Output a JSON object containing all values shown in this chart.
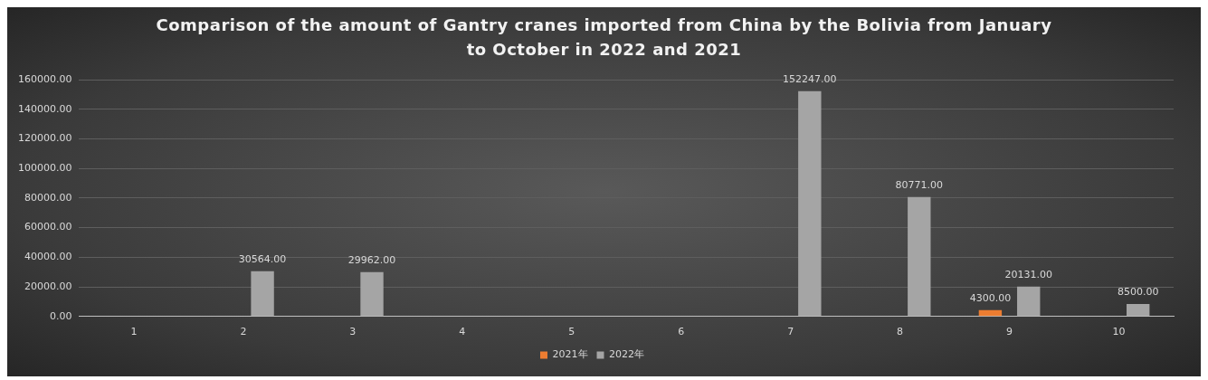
{
  "chart_data": {
    "type": "bar",
    "title": "Comparison of the amount of Gantry cranes imported from China by the Bolivia from January to October in 2022 and 2021",
    "categories": [
      "1",
      "2",
      "3",
      "4",
      "5",
      "6",
      "7",
      "8",
      "9",
      "10"
    ],
    "series": [
      {
        "name": "2021年",
        "color": "#ed7d31",
        "values": [
          0,
          0,
          0,
          0,
          0,
          0,
          0,
          0,
          4300,
          0
        ],
        "value_labels": [
          null,
          null,
          null,
          null,
          null,
          null,
          null,
          null,
          "4300.00",
          null
        ]
      },
      {
        "name": "2022年",
        "color": "#a5a5a5",
        "values": [
          0,
          30564,
          29962,
          0,
          0,
          0,
          152247,
          80771,
          20131,
          8500
        ],
        "value_labels": [
          null,
          "30564.00",
          "29962.00",
          null,
          null,
          null,
          "152247.00",
          "80771.00",
          "20131.00",
          "8500.00"
        ]
      }
    ],
    "ylim": [
      0,
      160000
    ],
    "yticks": [
      {
        "value": 0,
        "label": "0.00"
      },
      {
        "value": 20000,
        "label": "20000.00"
      },
      {
        "value": 40000,
        "label": "40000.00"
      },
      {
        "value": 60000,
        "label": "60000.00"
      },
      {
        "value": 80000,
        "label": "80000.00"
      },
      {
        "value": 100000,
        "label": "100000.00"
      },
      {
        "value": 120000,
        "label": "120000.00"
      },
      {
        "value": 140000,
        "label": "140000.00"
      },
      {
        "value": 160000,
        "label": "160000.00"
      }
    ],
    "grid": "y",
    "legend": "bottom"
  }
}
